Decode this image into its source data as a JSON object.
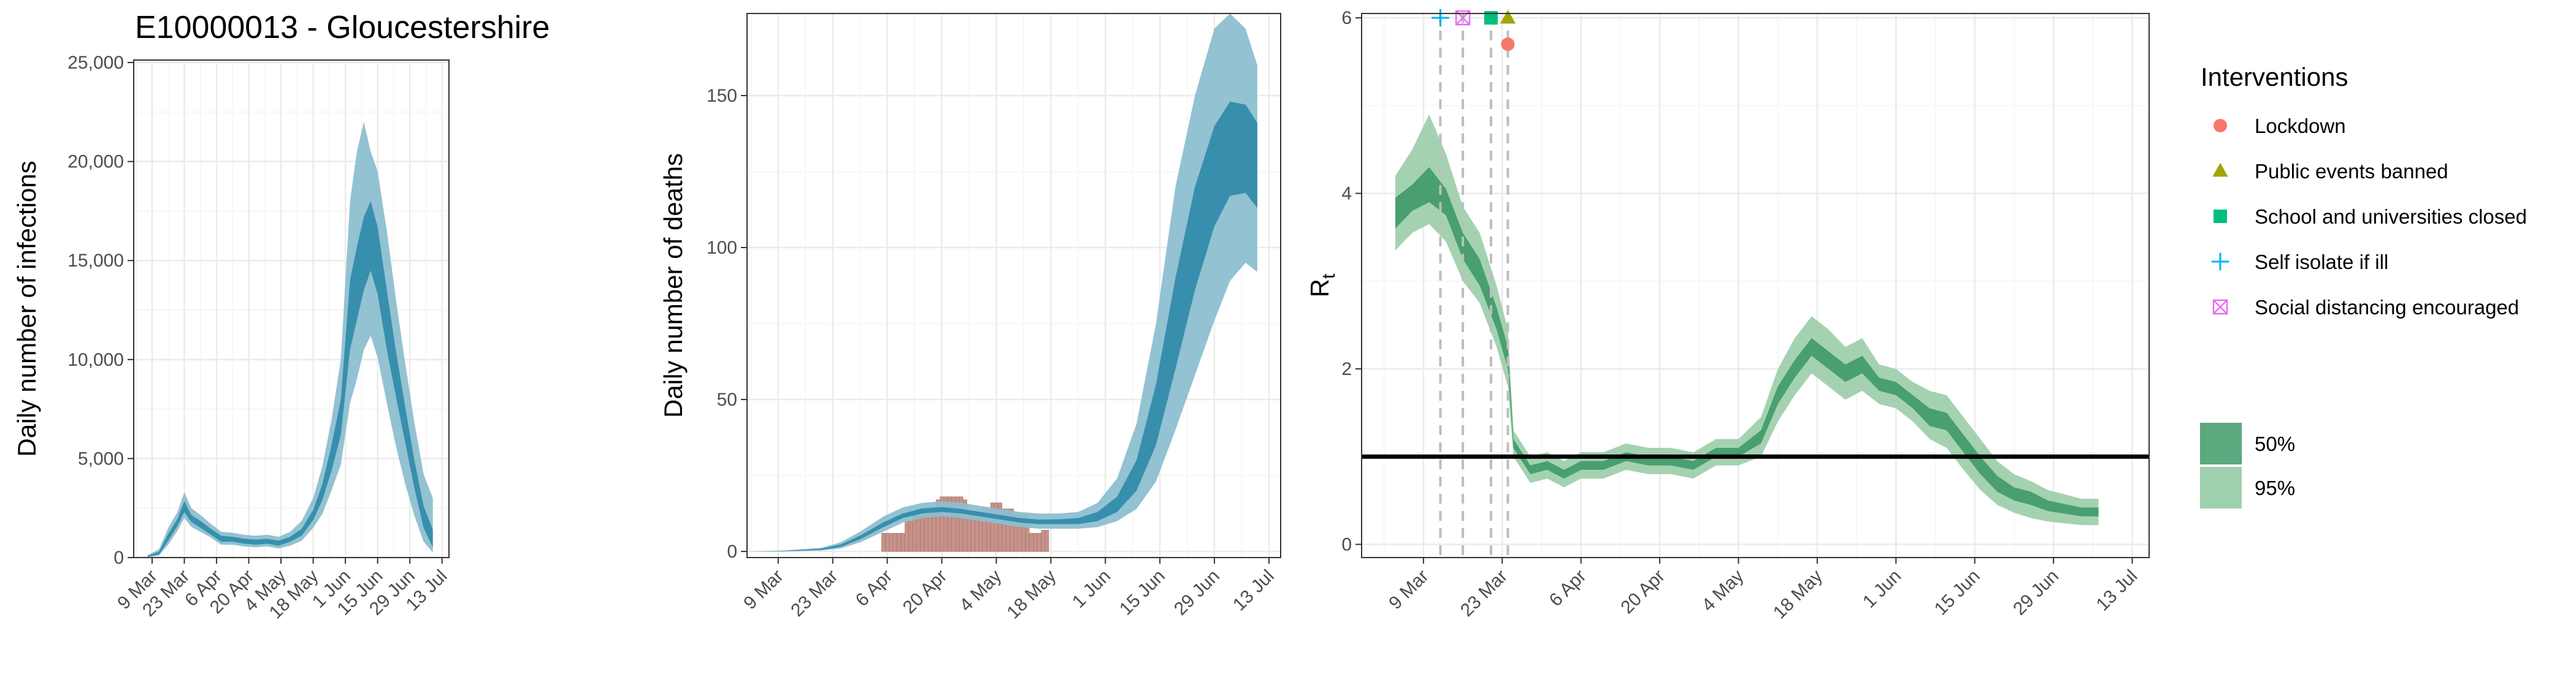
{
  "title": "E10000013 - Gloucestershire",
  "colors": {
    "inner_band": "#2d8aa9",
    "outer_band": "#8dbfd0",
    "deaths_bar": "#c7928a",
    "rt_inner": "#3f9968",
    "rt_outer": "#9fd0ad",
    "grid": "#ebebeb",
    "lockdown": "#f8766d",
    "public_events": "#a3a500",
    "schools": "#00bf7d",
    "self_isolate": "#00b0f6",
    "social_distancing": "#e76bf3"
  },
  "chart_data": [
    {
      "type": "area",
      "ylabel": "Daily number of infections",
      "xlabel": "",
      "xlim": [
        "2020-03-01",
        "2020-07-16"
      ],
      "ylim": [
        0,
        25000
      ],
      "x_ticks": [
        "2020-03-09",
        "2020-03-23",
        "2020-04-06",
        "2020-04-20",
        "2020-05-04",
        "2020-05-18",
        "2020-06-01",
        "2020-06-15",
        "2020-06-29",
        "2020-07-13"
      ],
      "x_tick_labels": [
        "9 Mar",
        "23 Mar",
        "6 Apr",
        "20 Apr",
        "4 May",
        "18 May",
        "1 Jun",
        "15 Jun",
        "29 Jun",
        "13 Jul"
      ],
      "y_ticks": [
        0,
        5000,
        10000,
        15000,
        20000,
        25000
      ],
      "y_tick_labels": [
        "0",
        "5,000",
        "10,000",
        "15,000",
        "20,000",
        "25,000"
      ],
      "series": [
        {
          "x": [
            "2020-03-07",
            "2020-03-12",
            "2020-03-16",
            "2020-03-20",
            "2020-03-23",
            "2020-03-26",
            "2020-03-30",
            "2020-04-03",
            "2020-04-08",
            "2020-04-13",
            "2020-04-18",
            "2020-04-23",
            "2020-04-28",
            "2020-05-03",
            "2020-05-08",
            "2020-05-13",
            "2020-05-18",
            "2020-05-22",
            "2020-05-26",
            "2020-05-30",
            "2020-06-03",
            "2020-06-06",
            "2020-06-09",
            "2020-06-12",
            "2020-06-15",
            "2020-06-19",
            "2020-06-23",
            "2020-06-27",
            "2020-07-01",
            "2020-07-05",
            "2020-07-09"
          ],
          "mid_lo": [
            40,
            160,
            850,
            1600,
            2300,
            1800,
            1500,
            1200,
            800,
            800,
            700,
            650,
            700,
            600,
            800,
            1100,
            1900,
            2900,
            4400,
            6200,
            10500,
            12000,
            13500,
            14500,
            13300,
            10500,
            8100,
            5800,
            3500,
            1500,
            500
          ],
          "mid_hi": [
            80,
            300,
            1200,
            1950,
            2850,
            2150,
            1850,
            1500,
            1100,
            1050,
            950,
            900,
            950,
            850,
            1050,
            1450,
            2400,
            3700,
            5700,
            8000,
            14000,
            15700,
            17200,
            18000,
            16700,
            13500,
            10400,
            7600,
            4900,
            2600,
            1400
          ],
          "out_lo": [
            20,
            100,
            650,
            1350,
            2000,
            1550,
            1300,
            1050,
            650,
            650,
            560,
            520,
            560,
            460,
            600,
            850,
            1500,
            2200,
            3400,
            4700,
            7800,
            9000,
            10500,
            11200,
            10100,
            7800,
            5600,
            3700,
            2100,
            800,
            250
          ],
          "out_hi": [
            120,
            420,
            1500,
            2300,
            3300,
            2500,
            2150,
            1750,
            1300,
            1250,
            1150,
            1100,
            1150,
            1050,
            1300,
            1850,
            3000,
            4600,
            7000,
            10000,
            18000,
            20500,
            22000,
            20500,
            19500,
            16500,
            13000,
            9800,
            6800,
            4200,
            3000
          ]
        }
      ]
    },
    {
      "type": "area",
      "ylabel": "Daily number of deaths",
      "xlabel": "",
      "xlim": [
        "2020-03-01",
        "2020-07-16"
      ],
      "ylim": [
        0,
        175
      ],
      "x_ticks": [
        "2020-03-09",
        "2020-03-23",
        "2020-04-06",
        "2020-04-20",
        "2020-05-04",
        "2020-05-18",
        "2020-06-01",
        "2020-06-15",
        "2020-06-29",
        "2020-07-13"
      ],
      "x_tick_labels": [
        "9 Mar",
        "23 Mar",
        "6 Apr",
        "20 Apr",
        "4 May",
        "18 May",
        "1 Jun",
        "15 Jun",
        "29 Jun",
        "13 Jul"
      ],
      "y_ticks": [
        0,
        50,
        100,
        150
      ],
      "y_tick_labels": [
        "0",
        "50",
        "100",
        "150"
      ],
      "bars": {
        "x": [
          "2020-04-05",
          "2020-04-06",
          "2020-04-07",
          "2020-04-08",
          "2020-04-09",
          "2020-04-10",
          "2020-04-11",
          "2020-04-12",
          "2020-04-13",
          "2020-04-14",
          "2020-04-15",
          "2020-04-16",
          "2020-04-17",
          "2020-04-18",
          "2020-04-19",
          "2020-04-20",
          "2020-04-21",
          "2020-04-22",
          "2020-04-23",
          "2020-04-24",
          "2020-04-25",
          "2020-04-26",
          "2020-04-27",
          "2020-04-28",
          "2020-04-29",
          "2020-04-30",
          "2020-05-01",
          "2020-05-02",
          "2020-05-03",
          "2020-05-04",
          "2020-05-05",
          "2020-05-06",
          "2020-05-07",
          "2020-05-08",
          "2020-05-09",
          "2020-05-10",
          "2020-05-11",
          "2020-05-12",
          "2020-05-13",
          "2020-05-14",
          "2020-05-15",
          "2020-05-16",
          "2020-05-17"
        ],
        "values": [
          6,
          6,
          6,
          6,
          6,
          6,
          10,
          10,
          12,
          12,
          12,
          12,
          13,
          13,
          17,
          18,
          18,
          18,
          18,
          18,
          18,
          17,
          13,
          13,
          13,
          13,
          14,
          14,
          16,
          16,
          16,
          14,
          14,
          14,
          12,
          12,
          12,
          12,
          6,
          6,
          6,
          7,
          7
        ]
      },
      "series": [
        {
          "x": [
            "2020-03-01",
            "2020-03-10",
            "2020-03-20",
            "2020-03-25",
            "2020-03-30",
            "2020-04-05",
            "2020-04-10",
            "2020-04-15",
            "2020-04-20",
            "2020-04-25",
            "2020-04-30",
            "2020-05-05",
            "2020-05-10",
            "2020-05-15",
            "2020-05-20",
            "2020-05-25",
            "2020-05-30",
            "2020-06-04",
            "2020-06-09",
            "2020-06-14",
            "2020-06-19",
            "2020-06-24",
            "2020-06-29",
            "2020-07-03",
            "2020-07-07",
            "2020-07-10"
          ],
          "mid_lo": [
            0,
            0.1,
            0.5,
            1.5,
            4,
            8,
            11,
            12.5,
            13,
            12.5,
            11.5,
            10.5,
            9.5,
            9,
            9,
            9,
            10,
            13,
            20,
            35,
            60,
            86,
            107,
            117,
            118,
            113
          ],
          "mid_hi": [
            0,
            0.2,
            0.9,
            2.3,
            5.2,
            9.6,
            12.5,
            14.2,
            14.6,
            14,
            13,
            12,
            11,
            10.5,
            10.6,
            11,
            13,
            18,
            30,
            55,
            90,
            120,
            140,
            148,
            147,
            141
          ],
          "out_lo": [
            0,
            0,
            0.3,
            1,
            3,
            6.5,
            9.5,
            11,
            11.5,
            11,
            10,
            9,
            8,
            7.5,
            7.5,
            7.5,
            8,
            10,
            14,
            23,
            40,
            58,
            76,
            89,
            95,
            92
          ],
          "out_hi": [
            0,
            0.3,
            1.2,
            3,
            6.5,
            11.5,
            14.5,
            16,
            16.5,
            16,
            15,
            14,
            13,
            12.5,
            12.5,
            13,
            16,
            24,
            42,
            75,
            120,
            150,
            172,
            177,
            172,
            160
          ]
        }
      ]
    },
    {
      "type": "area",
      "ylabel": "R",
      "ylabel_subscript": "t",
      "xlabel": "",
      "xlim": [
        "2020-02-27",
        "2020-07-16"
      ],
      "ylim": [
        0,
        6
      ],
      "x_ticks": [
        "2020-03-09",
        "2020-03-23",
        "2020-04-06",
        "2020-04-20",
        "2020-05-04",
        "2020-05-18",
        "2020-06-01",
        "2020-06-15",
        "2020-06-29",
        "2020-07-13"
      ],
      "x_tick_labels": [
        "9 Mar",
        "23 Mar",
        "6 Apr",
        "20 Apr",
        "4 May",
        "18 May",
        "1 Jun",
        "15 Jun",
        "29 Jun",
        "13 Jul"
      ],
      "y_ticks": [
        0,
        2,
        4,
        6
      ],
      "y_tick_labels": [
        "0",
        "2",
        "4",
        "6"
      ],
      "reference_line": 1,
      "intervention_dates": [
        "2020-03-12",
        "2020-03-16",
        "2020-03-21",
        "2020-03-24"
      ],
      "interventions": [
        {
          "label": "Lockdown",
          "date": "2020-03-24",
          "y": 5.7,
          "shape": "circle"
        },
        {
          "label": "Public events banned",
          "date": "2020-03-24",
          "y": 6.0,
          "shape": "triangle"
        },
        {
          "label": "School and universities closed",
          "date": "2020-03-21",
          "y": 6.0,
          "shape": "square"
        },
        {
          "label": "Self isolate if ill",
          "date": "2020-03-12",
          "y": 6.0,
          "shape": "plus"
        },
        {
          "label": "Social distancing encouraged",
          "date": "2020-03-16",
          "y": 6.0,
          "shape": "boxcross"
        }
      ],
      "series": [
        {
          "x": [
            "2020-03-04",
            "2020-03-07",
            "2020-03-10",
            "2020-03-13",
            "2020-03-16",
            "2020-03-19",
            "2020-03-22",
            "2020-03-24",
            "2020-03-25",
            "2020-03-28",
            "2020-03-31",
            "2020-04-03",
            "2020-04-06",
            "2020-04-10",
            "2020-04-14",
            "2020-04-18",
            "2020-04-22",
            "2020-04-26",
            "2020-04-30",
            "2020-05-04",
            "2020-05-08",
            "2020-05-11",
            "2020-05-14",
            "2020-05-17",
            "2020-05-20",
            "2020-05-23",
            "2020-05-26",
            "2020-05-29",
            "2020-06-01",
            "2020-06-04",
            "2020-06-07",
            "2020-06-10",
            "2020-06-13",
            "2020-06-16",
            "2020-06-19",
            "2020-06-22",
            "2020-06-25",
            "2020-06-28",
            "2020-07-01",
            "2020-07-04",
            "2020-07-07"
          ],
          "mid_lo": [
            3.6,
            3.8,
            3.9,
            3.75,
            3.25,
            2.95,
            2.45,
            2.0,
            1.1,
            0.8,
            0.85,
            0.75,
            0.85,
            0.85,
            0.95,
            0.9,
            0.9,
            0.85,
            1.0,
            1.0,
            1.15,
            1.6,
            1.9,
            2.15,
            2.0,
            1.85,
            1.95,
            1.75,
            1.7,
            1.55,
            1.35,
            1.3,
            1.05,
            0.8,
            0.6,
            0.5,
            0.45,
            0.38,
            0.35,
            0.32,
            0.32
          ],
          "mid_hi": [
            3.95,
            4.1,
            4.3,
            4.05,
            3.55,
            3.25,
            2.7,
            2.25,
            1.2,
            0.9,
            0.95,
            0.85,
            0.95,
            0.95,
            1.05,
            1.0,
            1.0,
            0.95,
            1.1,
            1.1,
            1.3,
            1.8,
            2.1,
            2.35,
            2.2,
            2.05,
            2.15,
            1.9,
            1.85,
            1.7,
            1.55,
            1.5,
            1.25,
            1.0,
            0.78,
            0.65,
            0.6,
            0.5,
            0.46,
            0.42,
            0.42
          ],
          "out_lo": [
            3.35,
            3.55,
            3.65,
            3.45,
            3.0,
            2.75,
            2.25,
            1.8,
            1.0,
            0.7,
            0.75,
            0.65,
            0.75,
            0.75,
            0.85,
            0.8,
            0.8,
            0.75,
            0.9,
            0.9,
            1.0,
            1.4,
            1.7,
            1.95,
            1.8,
            1.65,
            1.75,
            1.6,
            1.55,
            1.4,
            1.2,
            1.1,
            0.85,
            0.62,
            0.45,
            0.36,
            0.3,
            0.26,
            0.24,
            0.22,
            0.22
          ],
          "out_hi": [
            4.2,
            4.5,
            4.9,
            4.45,
            3.85,
            3.55,
            2.95,
            2.45,
            1.3,
            1.0,
            1.05,
            0.95,
            1.05,
            1.05,
            1.15,
            1.1,
            1.1,
            1.05,
            1.2,
            1.2,
            1.45,
            2.0,
            2.35,
            2.6,
            2.45,
            2.25,
            2.35,
            2.05,
            2.0,
            1.85,
            1.75,
            1.7,
            1.45,
            1.2,
            0.95,
            0.8,
            0.72,
            0.62,
            0.57,
            0.52,
            0.52
          ]
        }
      ]
    }
  ],
  "legend": {
    "interventions_title": "Interventions",
    "interventions": [
      {
        "label": "Lockdown",
        "shape": "circle"
      },
      {
        "label": "Public events banned",
        "shape": "triangle"
      },
      {
        "label": "School and universities closed",
        "shape": "square"
      },
      {
        "label": "Self isolate if ill",
        "shape": "plus"
      },
      {
        "label": "Social distancing encouraged",
        "shape": "boxcross"
      }
    ],
    "ci": [
      {
        "label": "50%"
      },
      {
        "label": "95%"
      }
    ]
  }
}
